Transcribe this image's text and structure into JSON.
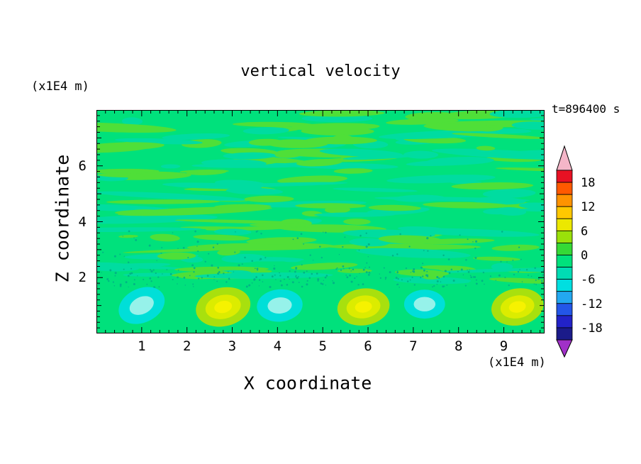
{
  "chart_data": {
    "type": "heatmap",
    "variant": "filled-contour",
    "title": "vertical velocity",
    "time_label": "t=896400 s",
    "xlabel": "X coordinate",
    "ylabel": "Z coordinate",
    "x_unit_label": "(x1E4 m)",
    "y_unit_label": "(x1E4 m)",
    "xlim": [
      0,
      9.9
    ],
    "ylim": [
      0,
      8
    ],
    "x_ticks": [
      1,
      2,
      3,
      4,
      5,
      6,
      7,
      8,
      9
    ],
    "y_ticks": [
      2,
      4,
      6
    ],
    "grid": false,
    "legend_position": "right-colorbar",
    "axis_color": "#000000",
    "colorbar": {
      "labels": [
        18,
        12,
        6,
        0,
        -6,
        -12,
        -18
      ],
      "band_edges": [
        21,
        18,
        15,
        12,
        9,
        6,
        3,
        0,
        -3,
        -6,
        -9,
        -12,
        -15,
        -18,
        -21
      ],
      "band_colors": [
        "#e81123",
        "#ff5900",
        "#ff9300",
        "#ffc800",
        "#ece800",
        "#9ae00a",
        "#35d936",
        "#00e17c",
        "#00dcb4",
        "#00dfe0",
        "#23a8f0",
        "#2356e8",
        "#2222c8",
        "#1b1b8a"
      ],
      "over_color": "#f4b6c8",
      "under_color": "#a030c8"
    },
    "field_colors": {
      "background": "#00e17c",
      "streak": "#4fdf38",
      "streak_alt": "#00dca0",
      "speckle": "#00b586",
      "negative_outer": "#00dfd8",
      "negative_core": "#96f2ea",
      "positive_outer": "#a8e00e",
      "positive_mid": "#dcec00",
      "positive_core": "#f6f200"
    },
    "field_summary": "Vertical velocity is near zero (-3..3, spring green with brighter green streaks) through most of the domain; just above the surface (z ~ 1 x1E4 m) there is a row of alternating cells: downdrafts ~ -6 to -9 (cyan cores) and updrafts ~ +6 to +12 (yellow cores). Speckled weak contours near z ~ 2.",
    "features": {
      "streak_band": {
        "z_range": [
          2.2,
          8
        ],
        "value_range": [
          -3,
          3
        ]
      },
      "speckle_band": {
        "z_range": [
          1.7,
          2.4
        ]
      },
      "bottom_cells": [
        {
          "x": 1.0,
          "z": 1.0,
          "sign": "negative",
          "peak": -9,
          "tilt": -25,
          "scale": 1.0
        },
        {
          "x": 2.8,
          "z": 0.95,
          "sign": "positive",
          "peak": 12,
          "tilt": -12,
          "scale": 1.05
        },
        {
          "x": 4.05,
          "z": 1.0,
          "sign": "negative",
          "peak": -8,
          "tilt": -5,
          "scale": 0.95
        },
        {
          "x": 5.9,
          "z": 0.95,
          "sign": "positive",
          "peak": 11,
          "tilt": -8,
          "scale": 1.0
        },
        {
          "x": 7.25,
          "z": 1.05,
          "sign": "negative",
          "peak": -8,
          "tilt": 0,
          "scale": 0.85
        },
        {
          "x": 9.3,
          "z": 0.95,
          "sign": "positive",
          "peak": 12,
          "tilt": -10,
          "scale": 1.0
        }
      ]
    }
  }
}
